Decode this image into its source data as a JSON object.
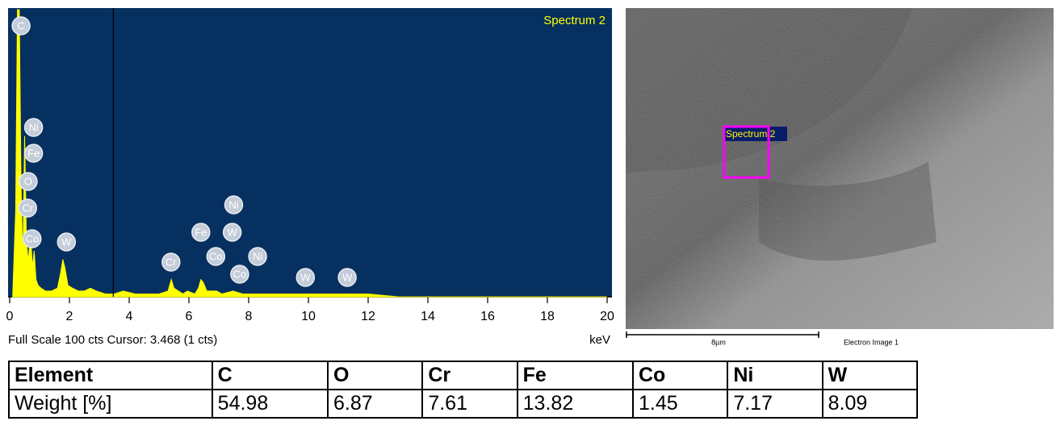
{
  "chart_data": {
    "type": "area",
    "title": "Spectrum 2",
    "x": [
      0.1,
      0.2,
      0.26,
      0.32,
      0.38,
      0.44,
      0.5,
      0.56,
      0.62,
      0.7,
      0.76,
      0.82,
      0.88,
      0.95,
      1.05,
      1.2,
      1.4,
      1.6,
      1.7,
      1.78,
      1.85,
      1.95,
      2.1,
      2.3,
      2.5,
      2.7,
      2.9,
      3.2,
      3.5,
      3.8,
      4.2,
      4.6,
      5.0,
      5.3,
      5.41,
      5.5,
      5.8,
      5.95,
      6.2,
      6.32,
      6.4,
      6.48,
      6.6,
      6.93,
      7.1,
      7.48,
      7.8,
      8.3,
      8.6,
      9.0,
      9.7,
      10.5,
      11.4,
      12,
      13,
      20
    ],
    "values": [
      0,
      30,
      100,
      100,
      40,
      10,
      56,
      20,
      12,
      22,
      10,
      16,
      6,
      4,
      3,
      2,
      2,
      3,
      8,
      13,
      10,
      4,
      3,
      2,
      2,
      3,
      2,
      1,
      1,
      2,
      1,
      1,
      1,
      2,
      6,
      3,
      1,
      2,
      1,
      3,
      6,
      5,
      2,
      2,
      1,
      2,
      1,
      1,
      1,
      1,
      1,
      1,
      1,
      1,
      0,
      0
    ],
    "color": "#ffff00",
    "xlim": [
      0,
      20
    ],
    "xticks": [
      0,
      2,
      4,
      6,
      8,
      10,
      12,
      14,
      16,
      18,
      20
    ],
    "ylim": [
      0,
      100
    ],
    "xlabel": "keV",
    "status": "Full Scale 100 cts Cursor: 3.468  (1 cts)",
    "cursor": 3.468,
    "annotations": [
      {
        "label": "C",
        "x": 0.38
      },
      {
        "label": "Ni",
        "x": 0.8
      },
      {
        "label": "Fe",
        "x": 0.8
      },
      {
        "label": "O",
        "x": 0.62
      },
      {
        "label": "Cr",
        "x": 0.6
      },
      {
        "label": "Co",
        "x": 0.75
      },
      {
        "label": "W",
        "x": 1.9
      },
      {
        "label": "Cr",
        "x": 5.4
      },
      {
        "label": "Fe",
        "x": 6.4
      },
      {
        "label": "W",
        "x": 7.45
      },
      {
        "label": "Ni",
        "x": 7.5
      },
      {
        "label": "Co",
        "x": 6.9
      },
      {
        "label": "Ni",
        "x": 8.3
      },
      {
        "label": "Co",
        "x": 7.7
      },
      {
        "label": "W",
        "x": 9.9
      },
      {
        "label": "W",
        "x": 11.3
      }
    ]
  },
  "image": {
    "region_label": "Spectrum 2",
    "scale_label": "8µm",
    "caption": "Electron Image 1"
  },
  "table": {
    "rows": [
      [
        "Element",
        "C",
        "O",
        "Cr",
        "Fe",
        "Co",
        "Ni",
        "W"
      ],
      [
        "Weight [%]",
        54.98,
        6.87,
        7.61,
        13.82,
        1.45,
        7.17,
        8.09
      ]
    ]
  }
}
